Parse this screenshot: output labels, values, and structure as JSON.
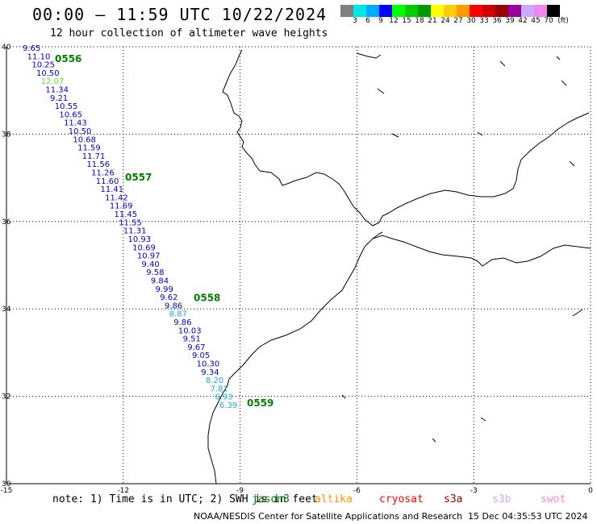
{
  "title": "00:00 – 11:59 UTC 10/22/2024",
  "subtitle": "12 hour collection of altimeter wave heights",
  "legend": {
    "unit": "(ft)",
    "colors": [
      "#808080",
      "#00e5e5",
      "#00aaff",
      "#0000ff",
      "#00ff00",
      "#00cc00",
      "#009900",
      "#ffff00",
      "#ffcc00",
      "#ff9900",
      "#ff0000",
      "#cc0000",
      "#990000",
      "#990099",
      "#ccaaff",
      "#ee88ee",
      "#000000"
    ],
    "labels": [
      "3",
      "6",
      "9",
      "12",
      "15",
      "18",
      "21",
      "24",
      "27",
      "30",
      "33",
      "36",
      "39",
      "42",
      "45",
      "70"
    ]
  },
  "axes": {
    "lat_ticks": [
      40,
      38,
      36,
      34,
      32,
      30
    ],
    "lon_ticks": [
      -15,
      -12,
      -9,
      -6,
      -3,
      0
    ],
    "lat_range": [
      30,
      40
    ],
    "lon_range": [
      -15,
      0
    ]
  },
  "track_labels": [
    {
      "text": "0556",
      "lat": 39.74
    },
    {
      "text": "0557",
      "lat": 37.03
    },
    {
      "text": "0558",
      "lat": 34.27
    },
    {
      "text": "0559",
      "lat": 31.86
    }
  ],
  "readings": [
    {
      "v": "9.65",
      "c": "#0000cc"
    },
    {
      "v": "11.10",
      "c": "#0000cc"
    },
    {
      "v": "10.25",
      "c": "#0000cc"
    },
    {
      "v": "10.50",
      "c": "#0000cc"
    },
    {
      "v": "12.07",
      "c": "#66dd44"
    },
    {
      "v": "11.34",
      "c": "#0000cc"
    },
    {
      "v": "9.21",
      "c": "#0000cc"
    },
    {
      "v": "10.55",
      "c": "#0000cc"
    },
    {
      "v": "10.65",
      "c": "#0000cc"
    },
    {
      "v": "11.43",
      "c": "#0000cc"
    },
    {
      "v": "10.50",
      "c": "#0000cc"
    },
    {
      "v": "10.68",
      "c": "#0000cc"
    },
    {
      "v": "11.59",
      "c": "#0000cc"
    },
    {
      "v": "11.71",
      "c": "#0000cc"
    },
    {
      "v": "11.56",
      "c": "#0000cc"
    },
    {
      "v": "11.26",
      "c": "#0000cc"
    },
    {
      "v": "11.60",
      "c": "#0000cc"
    },
    {
      "v": "11.41",
      "c": "#0000cc"
    },
    {
      "v": "11.42",
      "c": "#0000cc"
    },
    {
      "v": "11.69",
      "c": "#0000cc"
    },
    {
      "v": "11.45",
      "c": "#0000cc"
    },
    {
      "v": "11.55",
      "c": "#0000cc"
    },
    {
      "v": "11.31",
      "c": "#0000cc"
    },
    {
      "v": "10.93",
      "c": "#0000cc"
    },
    {
      "v": "10.69",
      "c": "#0000cc"
    },
    {
      "v": "10.97",
      "c": "#0000cc"
    },
    {
      "v": "9.40",
      "c": "#0000cc"
    },
    {
      "v": "9.58",
      "c": "#0000cc"
    },
    {
      "v": "9.84",
      "c": "#0000cc"
    },
    {
      "v": "9.99",
      "c": "#0000cc"
    },
    {
      "v": "9.62",
      "c": "#0000cc"
    },
    {
      "v": "9.86",
      "c": "#0000cc"
    },
    {
      "v": "8.87",
      "c": "#1ba8e0"
    },
    {
      "v": "9.86",
      "c": "#0000cc"
    },
    {
      "v": "10.03",
      "c": "#0000cc"
    },
    {
      "v": "9.51",
      "c": "#0000cc"
    },
    {
      "v": "9.67",
      "c": "#0000cc"
    },
    {
      "v": "9.05",
      "c": "#0000cc"
    },
    {
      "v": "10.30",
      "c": "#0000cc"
    },
    {
      "v": "9.34",
      "c": "#0000cc"
    },
    {
      "v": "8.20",
      "c": "#1ba8e0"
    },
    {
      "v": "7.81",
      "c": "#1ba8e0"
    },
    {
      "v": "6.93",
      "c": "#1ba8e0"
    },
    {
      "v": "6.39",
      "c": "#1ba8e0"
    }
  ],
  "note": "note: 1) Time is in UTC; 2) SWH is in feet",
  "satellites": [
    {
      "name": "jason3",
      "color": "#008000"
    },
    {
      "name": "altika",
      "color": "#ff9900"
    },
    {
      "name": "cryosat",
      "color": "#ff0000"
    },
    {
      "name": "s3a",
      "color": "#990000"
    },
    {
      "name": "s3b",
      "color": "#ccaaff"
    },
    {
      "name": "swot",
      "color": "#ee88ee"
    }
  ],
  "footer": "NOAA/NESDIS Center for Satellite Applications and Research",
  "footer_date": "15 Dec 04:35:53 UTC 2024",
  "label_color": "#008000"
}
